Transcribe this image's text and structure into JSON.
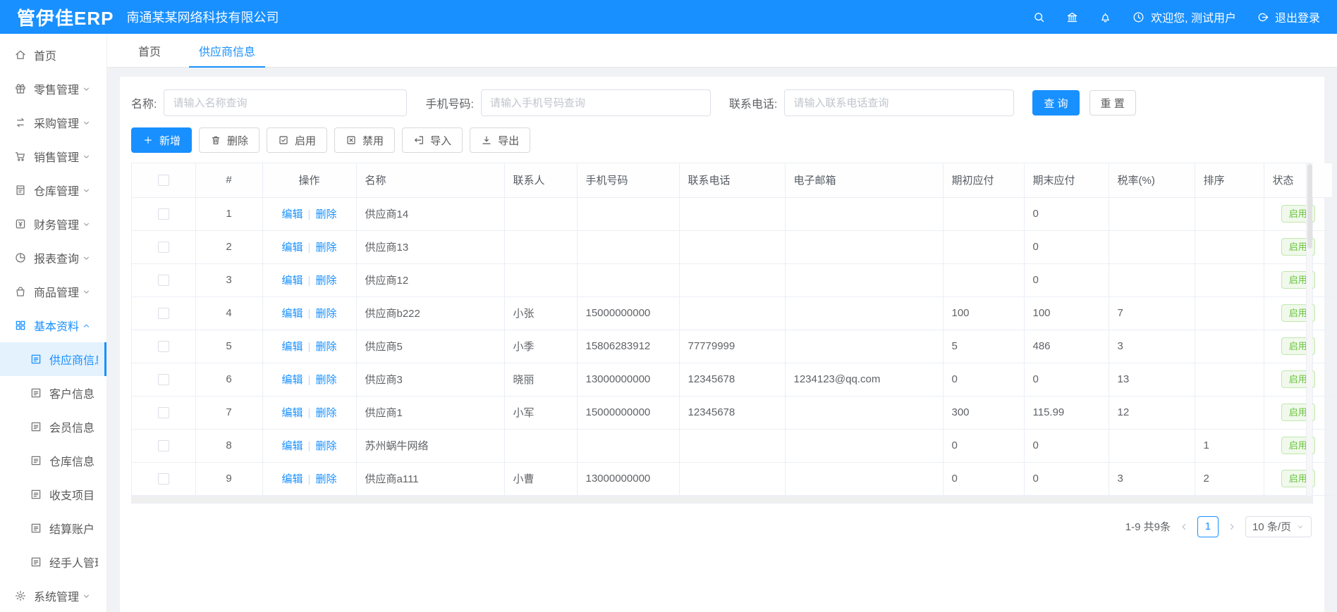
{
  "colors": {
    "accent": "#1890ff",
    "success": "#67c23a",
    "success_bg": "#f0f9eb",
    "success_border": "#c2e7b0"
  },
  "header": {
    "logo": "管伊佳ERP",
    "company": "南通某某网络科技有限公司",
    "welcome": "欢迎您, 测试用户",
    "logout": "退出登录"
  },
  "sidebar": {
    "items": [
      {
        "key": "home",
        "label": "首页",
        "icon": "home-icon"
      },
      {
        "key": "retail",
        "label": "零售管理",
        "icon": "retail-icon",
        "chevron": "down"
      },
      {
        "key": "purchase",
        "label": "采购管理",
        "icon": "purchase-icon",
        "chevron": "down"
      },
      {
        "key": "sales",
        "label": "销售管理",
        "icon": "sales-icon",
        "chevron": "down"
      },
      {
        "key": "warehouse",
        "label": "仓库管理",
        "icon": "warehouse-icon",
        "chevron": "down"
      },
      {
        "key": "finance",
        "label": "财务管理",
        "icon": "finance-icon",
        "chevron": "down"
      },
      {
        "key": "report",
        "label": "报表查询",
        "icon": "report-icon",
        "chevron": "down"
      },
      {
        "key": "goods",
        "label": "商品管理",
        "icon": "goods-icon",
        "chevron": "down"
      },
      {
        "key": "basic-data",
        "label": "基本资料",
        "icon": "basic-icon",
        "chevron": "up",
        "parent_active": true
      },
      {
        "key": "supplier-info",
        "label": "供应商信息",
        "icon": "list-icon",
        "submenu": true,
        "active": true
      },
      {
        "key": "customer-info",
        "label": "客户信息",
        "icon": "list-icon",
        "submenu": true
      },
      {
        "key": "member-info",
        "label": "会员信息",
        "icon": "list-icon",
        "submenu": true
      },
      {
        "key": "warehouse-info",
        "label": "仓库信息",
        "icon": "list-icon",
        "submenu": true
      },
      {
        "key": "income-expense",
        "label": "收支项目",
        "icon": "list-icon",
        "submenu": true
      },
      {
        "key": "settlement-account",
        "label": "结算账户",
        "icon": "list-icon",
        "submenu": true
      },
      {
        "key": "handler-mgmt",
        "label": "经手人管理",
        "icon": "list-icon",
        "submenu": true
      },
      {
        "key": "system",
        "label": "系统管理",
        "icon": "system-icon",
        "chevron": "down"
      }
    ]
  },
  "tabs": [
    {
      "key": "home",
      "label": "首页",
      "active": false
    },
    {
      "key": "supplier-info",
      "label": "供应商信息",
      "active": true
    }
  ],
  "filters": {
    "name_label": "名称:",
    "name_placeholder": "请输入名称查询",
    "mobile_label": "手机号码:",
    "mobile_placeholder": "请输入手机号码查询",
    "phone_label": "联系电话:",
    "phone_placeholder": "请输入联系电话查询",
    "search_label": "查 询",
    "reset_label": "重 置"
  },
  "toolbar": {
    "buttons": [
      {
        "key": "add",
        "label": "新增",
        "icon": "plus-icon",
        "primary": true
      },
      {
        "key": "delete",
        "label": "删除",
        "icon": "trash-icon"
      },
      {
        "key": "enable",
        "label": "启用",
        "icon": "check-square-icon"
      },
      {
        "key": "disable",
        "label": "禁用",
        "icon": "x-square-icon"
      },
      {
        "key": "import",
        "label": "导入",
        "icon": "import-icon"
      },
      {
        "key": "export",
        "label": "导出",
        "icon": "export-icon"
      }
    ]
  },
  "table": {
    "columns": [
      "#",
      "操作",
      "名称",
      "联系人",
      "手机号码",
      "联系电话",
      "电子邮箱",
      "期初应付",
      "期末应付",
      "税率(%)",
      "排序",
      "状态"
    ],
    "actions": {
      "edit": "编辑",
      "delete": "删除"
    },
    "rows": [
      {
        "idx": "1",
        "name": "供应商14",
        "contact": "",
        "mobile": "",
        "phone": "",
        "email": "",
        "opening": "",
        "closing": "0",
        "tax": "",
        "sort": "",
        "status": "启用"
      },
      {
        "idx": "2",
        "name": "供应商13",
        "contact": "",
        "mobile": "",
        "phone": "",
        "email": "",
        "opening": "",
        "closing": "0",
        "tax": "",
        "sort": "",
        "status": "启用"
      },
      {
        "idx": "3",
        "name": "供应商12",
        "contact": "",
        "mobile": "",
        "phone": "",
        "email": "",
        "opening": "",
        "closing": "0",
        "tax": "",
        "sort": "",
        "status": "启用"
      },
      {
        "idx": "4",
        "name": "供应商b222",
        "contact": "小张",
        "mobile": "15000000000",
        "phone": "",
        "email": "",
        "opening": "100",
        "closing": "100",
        "tax": "7",
        "sort": "",
        "status": "启用"
      },
      {
        "idx": "5",
        "name": "供应商5",
        "contact": "小季",
        "mobile": "15806283912",
        "phone": "77779999",
        "email": "",
        "opening": "5",
        "closing": "486",
        "tax": "3",
        "sort": "",
        "status": "启用"
      },
      {
        "idx": "6",
        "name": "供应商3",
        "contact": "晓丽",
        "mobile": "13000000000",
        "phone": "12345678",
        "email": "1234123@qq.com",
        "opening": "0",
        "closing": "0",
        "tax": "13",
        "sort": "",
        "status": "启用"
      },
      {
        "idx": "7",
        "name": "供应商1",
        "contact": "小军",
        "mobile": "15000000000",
        "phone": "12345678",
        "email": "",
        "opening": "300",
        "closing": "115.99",
        "tax": "12",
        "sort": "",
        "status": "启用"
      },
      {
        "idx": "8",
        "name": "苏州蜗牛网络",
        "contact": "",
        "mobile": "",
        "phone": "",
        "email": "",
        "opening": "0",
        "closing": "0",
        "tax": "",
        "sort": "1",
        "status": "启用"
      },
      {
        "idx": "9",
        "name": "供应商a111",
        "contact": "小曹",
        "mobile": "13000000000",
        "phone": "",
        "email": "",
        "opening": "0",
        "closing": "0",
        "tax": "3",
        "sort": "2",
        "status": "启用"
      }
    ]
  },
  "pagination": {
    "summary": "1-9 共9条",
    "current": "1",
    "page_size": "10 条/页"
  }
}
